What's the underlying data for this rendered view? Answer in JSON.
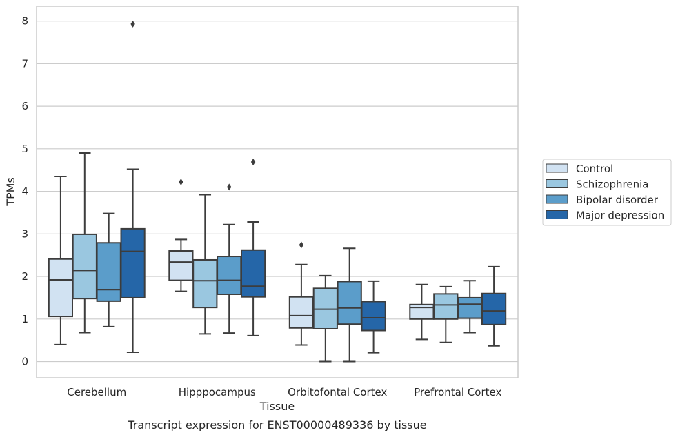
{
  "chart_data": {
    "type": "box",
    "xlabel": "Tissue",
    "ylabel": "TPMs",
    "caption": "Transcript expression for ENST00000489336 by tissue",
    "ylim": [
      -0.38,
      8.35
    ],
    "yticks": [
      "0",
      "1",
      "2",
      "3",
      "4",
      "5",
      "6",
      "7",
      "8"
    ],
    "grid": "horizontal",
    "legend_position": "right",
    "categories": [
      "Cerebellum",
      "Hipppocampus",
      "Orbitofontal Cortex",
      "Prefrontal Cortex"
    ],
    "series": [
      {
        "name": "Control",
        "color": "#d1e2f2",
        "boxes": [
          {
            "whislo": 0.4,
            "q1": 1.06,
            "med": 1.92,
            "q3": 2.41,
            "whishi": 4.35,
            "fliers": []
          },
          {
            "whislo": 1.65,
            "q1": 1.91,
            "med": 2.34,
            "q3": 2.6,
            "whishi": 2.87,
            "fliers": [
              4.22
            ]
          },
          {
            "whislo": 0.39,
            "q1": 0.79,
            "med": 1.08,
            "q3": 1.52,
            "whishi": 2.28,
            "fliers": [
              2.74
            ]
          },
          {
            "whislo": 0.52,
            "q1": 1.0,
            "med": 1.27,
            "q3": 1.34,
            "whishi": 1.81,
            "fliers": []
          }
        ]
      },
      {
        "name": "Schizophrenia",
        "color": "#9ac7e0",
        "boxes": [
          {
            "whislo": 0.68,
            "q1": 1.48,
            "med": 2.14,
            "q3": 2.99,
            "whishi": 4.9,
            "fliers": []
          },
          {
            "whislo": 0.65,
            "q1": 1.27,
            "med": 1.9,
            "q3": 2.39,
            "whishi": 3.92,
            "fliers": []
          },
          {
            "whislo": 0.0,
            "q1": 0.77,
            "med": 1.23,
            "q3": 1.72,
            "whishi": 2.02,
            "fliers": []
          },
          {
            "whislo": 0.45,
            "q1": 1.0,
            "med": 1.33,
            "q3": 1.59,
            "whishi": 1.76,
            "fliers": []
          }
        ]
      },
      {
        "name": "Bipolar disorder",
        "color": "#5b9dca",
        "boxes": [
          {
            "whislo": 0.82,
            "q1": 1.42,
            "med": 1.69,
            "q3": 2.79,
            "whishi": 3.48,
            "fliers": []
          },
          {
            "whislo": 0.67,
            "q1": 1.58,
            "med": 1.91,
            "q3": 2.47,
            "whishi": 3.22,
            "fliers": [
              4.1
            ]
          },
          {
            "whislo": 0.0,
            "q1": 0.88,
            "med": 1.26,
            "q3": 1.88,
            "whishi": 2.66,
            "fliers": []
          },
          {
            "whislo": 0.68,
            "q1": 1.02,
            "med": 1.35,
            "q3": 1.5,
            "whishi": 1.9,
            "fliers": []
          }
        ]
      },
      {
        "name": "Major depression",
        "color": "#2566a8",
        "boxes": [
          {
            "whislo": 0.22,
            "q1": 1.5,
            "med": 2.59,
            "q3": 3.12,
            "whishi": 4.52,
            "fliers": [
              7.93
            ]
          },
          {
            "whislo": 0.61,
            "q1": 1.52,
            "med": 1.77,
            "q3": 2.62,
            "whishi": 3.28,
            "fliers": [
              4.69
            ]
          },
          {
            "whislo": 0.21,
            "q1": 0.73,
            "med": 1.03,
            "q3": 1.41,
            "whishi": 1.89,
            "fliers": []
          },
          {
            "whislo": 0.37,
            "q1": 0.87,
            "med": 1.19,
            "q3": 1.6,
            "whishi": 2.23,
            "fliers": []
          }
        ]
      }
    ]
  }
}
